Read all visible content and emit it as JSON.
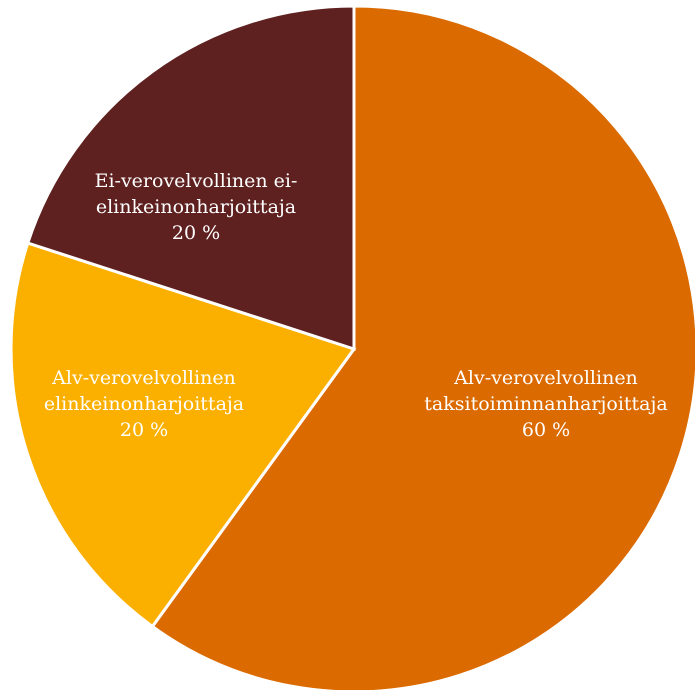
{
  "chart_data": {
    "type": "pie",
    "title": "",
    "start_angle_deg": 0,
    "direction": "clockwise",
    "slices": [
      {
        "key": "taksi",
        "label_lines": [
          "Alv-verovelvollinen",
          "taksitoiminnanharjoittaja"
        ],
        "value_label": "60 %",
        "value": 60,
        "color": "#db6a00"
      },
      {
        "key": "elinkeino",
        "label_lines": [
          "Alv-verovelvollinen",
          "elinkeinonharjoittaja"
        ],
        "value_label": "20 %",
        "value": 20,
        "color": "#fbb000"
      },
      {
        "key": "ei",
        "label_lines": [
          "Ei-verovelvollinen ei-",
          "elinkeinonharjoittaja"
        ],
        "value_label": "20 %",
        "value": 20,
        "color": "#5f2120"
      }
    ]
  }
}
